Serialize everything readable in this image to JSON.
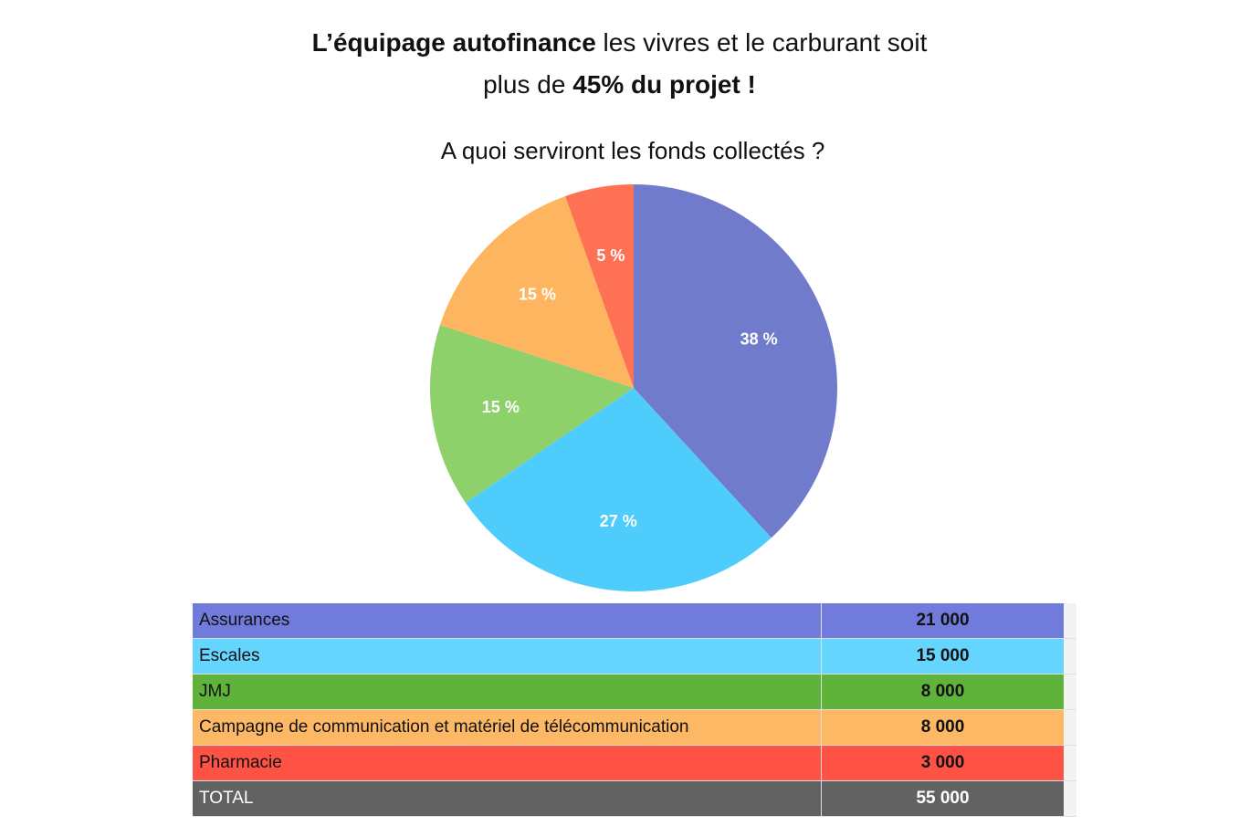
{
  "headline": {
    "part1_bold": "L’équipage autofinance",
    "part1_rest": " les vivres et le carburant soit",
    "part2_pre": "plus de ",
    "part2_bold": "45% du projet !"
  },
  "chart_data": {
    "type": "pie",
    "title": "A quoi serviront les fonds collectés ?",
    "categories": [
      "Assurances",
      "Escales",
      "JMJ",
      "Campagne de communication et matériel de télécommunication",
      "Pharmacie"
    ],
    "values": [
      21000,
      15000,
      8000,
      8000,
      3000
    ],
    "labels": [
      "38 %",
      "27 %",
      "15 %",
      "15 %",
      "5 %"
    ],
    "colors": [
      "#717bcb",
      "#4ecdfd",
      "#8ed16b",
      "#fdb65f",
      "#fe7155"
    ]
  },
  "table": {
    "rows": [
      {
        "label": "Assurances",
        "value": "21 000",
        "color": "#717bdb"
      },
      {
        "label": "Escales",
        "value": "15 000",
        "color": "#66d5fd"
      },
      {
        "label": "JMJ",
        "value": "8 000",
        "color": "#5fb33a"
      },
      {
        "label": "Campagne de communication et matériel de télécommunication",
        "value": "8 000",
        "color": "#fdb866"
      },
      {
        "label": "Pharmacie",
        "value": "3 000",
        "color": "#fe5244"
      }
    ],
    "total": {
      "label": "TOTAL",
      "value": "55 000",
      "color": "#626262"
    }
  }
}
